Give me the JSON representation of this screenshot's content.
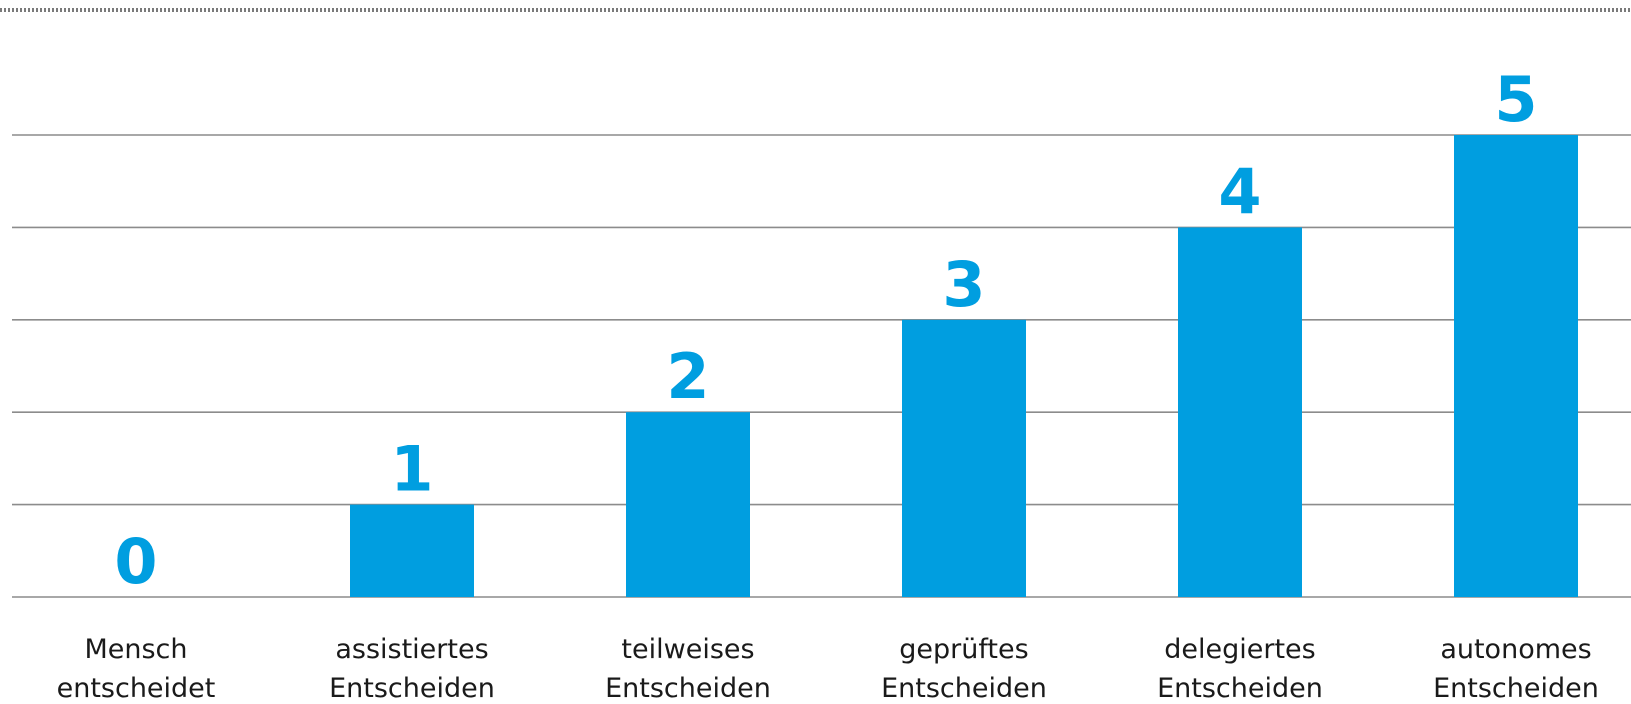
{
  "chart_data": {
    "type": "bar",
    "categories": [
      [
        "Mensch",
        "entscheidet"
      ],
      [
        "assistiertes",
        "Entscheiden"
      ],
      [
        "teilweises",
        "Entscheiden"
      ],
      [
        "geprüftes",
        "Entscheiden"
      ],
      [
        "delegiertes",
        "Entscheiden"
      ],
      [
        "autonomes",
        "Entscheiden"
      ]
    ],
    "values": [
      0,
      1,
      2,
      3,
      4,
      5
    ],
    "data_labels": [
      "0",
      "1",
      "2",
      "3",
      "4",
      "5"
    ],
    "ylim": [
      0,
      5
    ],
    "grid": true,
    "legend": "none",
    "title": "",
    "xlabel": "",
    "ylabel": ""
  },
  "colors": {
    "bar": "#009ee0",
    "label": "#009ee0",
    "grid": "#8c8c8c",
    "dotted_border": "#7a7a7a",
    "text": "#1a1a1a"
  }
}
